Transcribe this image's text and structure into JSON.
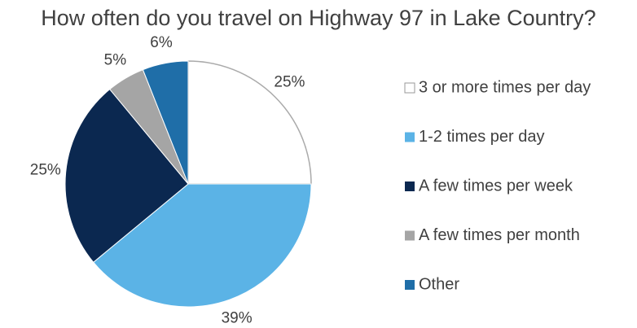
{
  "chart_data": {
    "type": "pie",
    "title": "How often do you travel on Highway 97 in Lake Country?",
    "categories": [
      "3 or more times per day",
      "1-2 times per day",
      "A few times per week",
      "A few times per month",
      "Other"
    ],
    "values": [
      25,
      39,
      25,
      5,
      6
    ],
    "value_labels": [
      "25%",
      "39%",
      "25%",
      "5%",
      "6%"
    ],
    "colors": [
      "#ffffff",
      "#5bb3e6",
      "#0b2850",
      "#a5a5a5",
      "#1f6ea8"
    ],
    "legend": "right"
  }
}
